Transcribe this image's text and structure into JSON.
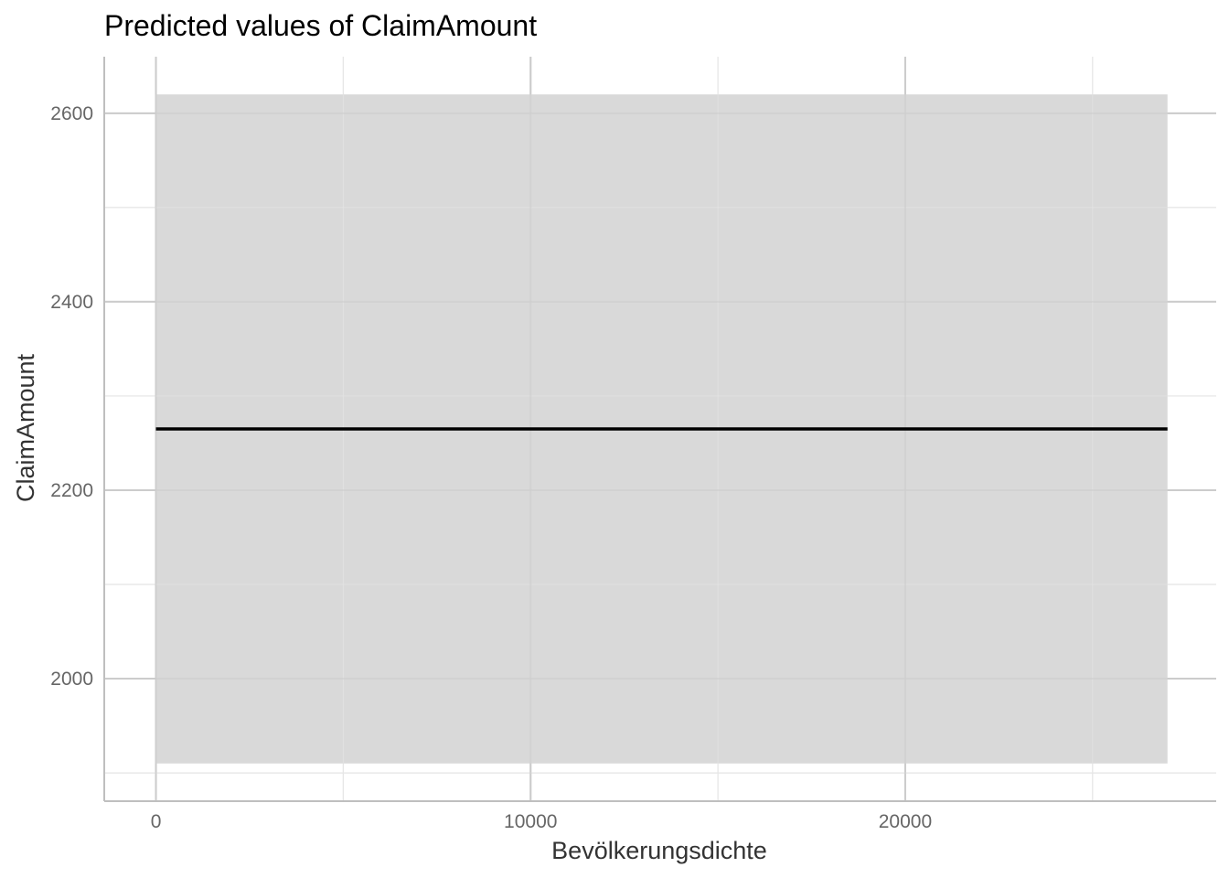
{
  "chart_data": {
    "type": "line",
    "title": "Predicted values of ClaimAmount",
    "xlabel": "Bevölkerungsdichte",
    "ylabel": "ClaimAmount",
    "xlim": [
      -1380,
      28300
    ],
    "ylim": [
      1870,
      2660
    ],
    "x_ticks": [
      0,
      10000,
      20000
    ],
    "x_tick_labels": [
      "0",
      "10000",
      "20000"
    ],
    "x_minor_ticks": [
      5000,
      15000,
      25000
    ],
    "y_ticks": [
      2000,
      2200,
      2400,
      2600
    ],
    "y_tick_labels": [
      "2000",
      "2200",
      "2400",
      "2600"
    ],
    "y_minor_ticks": [
      1900,
      2100,
      2300,
      2500
    ],
    "grid": true,
    "series": [
      {
        "x": [
          0,
          27000
        ],
        "y": [
          2265,
          2265
        ],
        "ci_low": [
          1910,
          1910
        ],
        "ci_high": [
          2620,
          2620
        ]
      }
    ],
    "colors": {
      "line": "#000000",
      "ribbon": "#d9d9d9",
      "grid_major": "#cccccc",
      "grid_minor": "#e6e6e6",
      "axis": "#bfbfbf"
    }
  }
}
